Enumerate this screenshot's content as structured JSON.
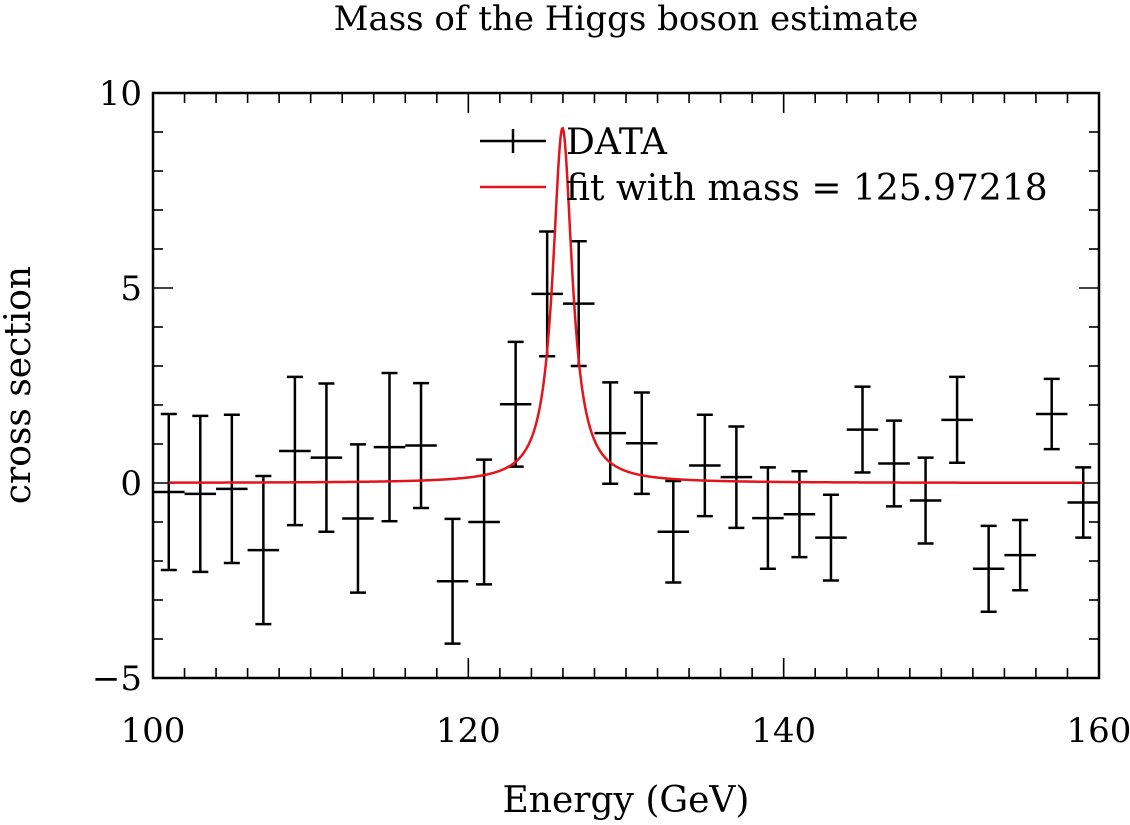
{
  "chart_data": {
    "type": "scatter",
    "title": "Mass of the Higgs boson estimate",
    "xlabel": "Energy (GeV)",
    "ylabel": "cross section",
    "xlim": [
      100,
      160
    ],
    "ylim": [
      -5,
      10
    ],
    "x_ticks": [
      100,
      120,
      140,
      160
    ],
    "x_tick_labels": [
      "100",
      "120",
      "140",
      "160"
    ],
    "y_ticks": [
      -5,
      0,
      5,
      10
    ],
    "y_tick_labels": [
      "−5",
      "0",
      "5",
      "10"
    ],
    "grid": false,
    "legend": {
      "placement": "top-center"
    },
    "series": [
      {
        "name": "DATA",
        "kind": "errorbar",
        "color": "#000000",
        "x_halfwidth": 1,
        "points": [
          {
            "x": 101,
            "y": -0.23,
            "err": 2.0
          },
          {
            "x": 103,
            "y": -0.28,
            "err": 2.0
          },
          {
            "x": 105,
            "y": -0.15,
            "err": 1.9
          },
          {
            "x": 107,
            "y": -1.72,
            "err": 1.9
          },
          {
            "x": 109,
            "y": 0.82,
            "err": 1.9
          },
          {
            "x": 111,
            "y": 0.65,
            "err": 1.9
          },
          {
            "x": 113,
            "y": -0.91,
            "err": 1.9
          },
          {
            "x": 115,
            "y": 0.92,
            "err": 1.9
          },
          {
            "x": 117,
            "y": 0.96,
            "err": 1.6
          },
          {
            "x": 119,
            "y": -2.52,
            "err": 1.6
          },
          {
            "x": 121,
            "y": -1.0,
            "err": 1.6
          },
          {
            "x": 123,
            "y": 2.02,
            "err": 1.6
          },
          {
            "x": 125,
            "y": 4.85,
            "err": 1.6
          },
          {
            "x": 127,
            "y": 4.6,
            "err": 1.6
          },
          {
            "x": 129,
            "y": 1.28,
            "err": 1.3
          },
          {
            "x": 131,
            "y": 1.02,
            "err": 1.3
          },
          {
            "x": 133,
            "y": -1.25,
            "err": 1.3
          },
          {
            "x": 135,
            "y": 0.45,
            "err": 1.3
          },
          {
            "x": 137,
            "y": 0.15,
            "err": 1.3
          },
          {
            "x": 139,
            "y": -0.9,
            "err": 1.3
          },
          {
            "x": 141,
            "y": -0.8,
            "err": 1.1
          },
          {
            "x": 143,
            "y": -1.4,
            "err": 1.1
          },
          {
            "x": 145,
            "y": 1.37,
            "err": 1.1
          },
          {
            "x": 147,
            "y": 0.5,
            "err": 1.1
          },
          {
            "x": 149,
            "y": -0.45,
            "err": 1.1
          },
          {
            "x": 151,
            "y": 1.62,
            "err": 1.1
          },
          {
            "x": 153,
            "y": -2.2,
            "err": 1.1
          },
          {
            "x": 155,
            "y": -1.85,
            "err": 0.9
          },
          {
            "x": 157,
            "y": 1.77,
            "err": 0.9
          },
          {
            "x": 159,
            "y": -0.5,
            "err": 0.9
          }
        ]
      },
      {
        "name": "fit with mass = 125.97218",
        "kind": "line",
        "color": "#e3141b",
        "model": "lorentzian",
        "mass": 125.97218,
        "peak": 9.1,
        "gamma": 0.75,
        "x_range": [
          101,
          159
        ]
      }
    ]
  }
}
